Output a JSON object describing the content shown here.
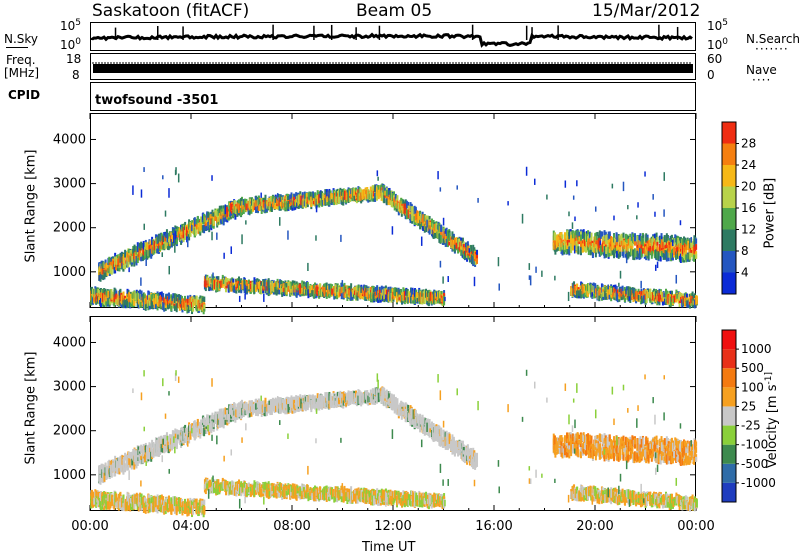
{
  "header": {
    "station": "Saskatoon (fitACF)",
    "beam": "Beam 05",
    "date": "15/Mar/2012"
  },
  "noise_panel": {
    "left_label": "N.Sky",
    "right_label": "N.Search",
    "right_dots": "·······",
    "tick_top": "10^5",
    "tick_bottom": "10^0",
    "tick_top_right": "10^5",
    "tick_bottom_right": "10^0"
  },
  "freq_panel": {
    "label_line1": "Freq.",
    "label_line2": "[MHz]",
    "tick_top": "18",
    "tick_bottom": "8",
    "right_label": "Nave",
    "right_dots": "····",
    "tick_top_right": "60",
    "tick_bottom_right": "0"
  },
  "cpid_panel": {
    "label": "CPID",
    "value": "twofsound  -3501"
  },
  "chart_data": [
    {
      "type": "heatmap",
      "title": "",
      "xlabel": "",
      "ylabel": "Slant Range [km]",
      "x_ticks": [
        "00:00",
        "04:00",
        "08:00",
        "12:00",
        "16:00",
        "20:00",
        "00:00"
      ],
      "xlim_hours": [
        0,
        24
      ],
      "y_ticks": [
        1000,
        2000,
        3000,
        4000
      ],
      "ylim": [
        180,
        4600
      ],
      "colorbar": {
        "label": "Power [dB]",
        "ticks": [
          4,
          8,
          12,
          16,
          20,
          24,
          28
        ],
        "colors": [
          "#0b2bd6",
          "#2456c0",
          "#2e7a62",
          "#4fa84a",
          "#b8d34a",
          "#f6b817",
          "#f57f10",
          "#ef2d12"
        ]
      },
      "scatter_bands": [
        {
          "name": "",
          "start_h": 0.3,
          "end_h": 6.0,
          "start_km": 1000,
          "end_km": 2500,
          "width_km": 300
        },
        {
          "name": "",
          "start_h": 5.5,
          "end_h": 11.5,
          "start_km": 2450,
          "end_km": 2800,
          "width_km": 220
        },
        {
          "name": "",
          "start_h": 11.5,
          "end_h": 15.3,
          "start_km": 2800,
          "end_km": 1300,
          "width_km": 280
        },
        {
          "name": "",
          "start_h": 0.0,
          "end_h": 4.5,
          "start_km": 450,
          "end_km": 250,
          "width_km": 260
        },
        {
          "name": "",
          "start_h": 4.5,
          "end_h": 14.0,
          "start_km": 750,
          "end_km": 400,
          "width_km": 200
        },
        {
          "name": "",
          "start_h": 18.3,
          "end_h": 24.0,
          "start_km": 1700,
          "end_km": 1500,
          "width_km": 450
        },
        {
          "name": "",
          "start_h": 19.0,
          "end_h": 24.0,
          "start_km": 600,
          "end_km": 350,
          "width_km": 200
        }
      ]
    },
    {
      "type": "heatmap",
      "title": "",
      "xlabel": "Time UT",
      "ylabel": "Slant Range [km]",
      "x_ticks": [
        "00:00",
        "04:00",
        "08:00",
        "12:00",
        "16:00",
        "20:00",
        "00:00"
      ],
      "xlim_hours": [
        0,
        24
      ],
      "y_ticks": [
        1000,
        2000,
        3000,
        4000
      ],
      "ylim": [
        180,
        4600
      ],
      "colorbar": {
        "label": "Velocity [m s^-1]",
        "ticks": [
          1000,
          500,
          100,
          25,
          -25,
          -100,
          -500,
          -1000
        ],
        "colors": [
          "#1f3dbf",
          "#2f6ca8",
          "#3d8a4e",
          "#8ad03a",
          "#c8c8c8",
          "#f6a020",
          "#f47a10",
          "#e83018",
          "#f01010"
        ]
      }
    }
  ]
}
